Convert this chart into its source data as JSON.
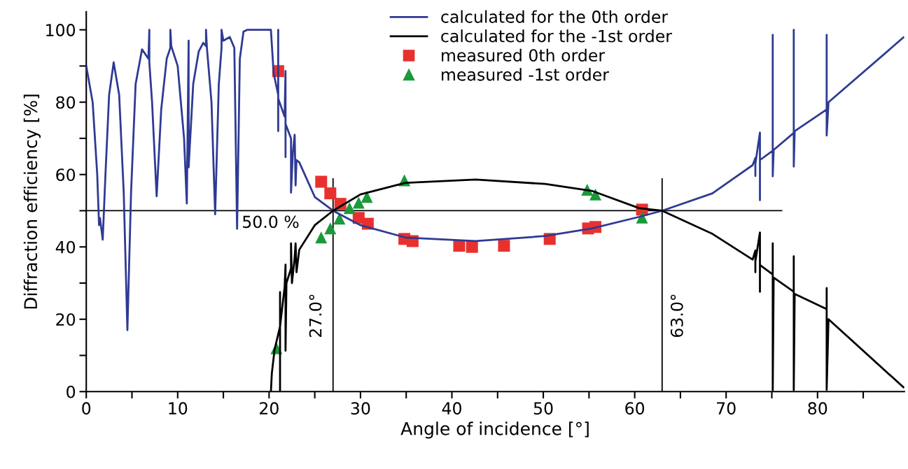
{
  "chart_data": {
    "type": "line",
    "xlabel": "Angle of incidence [°]",
    "ylabel": "Diffraction efficiency [%]",
    "xlim": [
      0,
      89.5
    ],
    "ylim": [
      0,
      105
    ],
    "xticks": [
      0,
      {
        "value": 5,
        "label": null
      },
      10,
      {
        "value": 15,
        "label": null
      },
      20,
      {
        "value": 25,
        "label": null
      },
      30,
      {
        "value": 35,
        "label": null
      },
      40,
      {
        "value": 45,
        "label": null
      },
      50,
      {
        "value": 55,
        "label": null
      },
      60,
      {
        "value": 65,
        "label": null
      },
      70,
      {
        "value": 75,
        "label": null
      },
      80,
      {
        "value": 85,
        "label": null
      }
    ],
    "yticks": [
      0,
      {
        "value": 10,
        "label": null
      },
      20,
      {
        "value": 30,
        "label": null
      },
      40,
      {
        "value": 50,
        "label": null
      },
      60,
      {
        "value": 70,
        "label": null
      },
      80,
      {
        "value": 90,
        "label": null
      },
      100
    ],
    "grid": false,
    "legend": "top",
    "ref_lines": [
      {
        "axis": "y",
        "value": 50,
        "label": "50.0 %",
        "color": "#000000"
      },
      {
        "axis": "x",
        "value": 27,
        "label": "27.0°",
        "color": "#000000"
      },
      {
        "axis": "x",
        "value": 63,
        "label": "63.0°",
        "color": "#000000"
      }
    ],
    "series": [
      {
        "name": "calculated for the 0th order",
        "color": "#2e3a94",
        "marker": "none",
        "line_style": "solid",
        "x": [
          0,
          0.7,
          1.2,
          1.4,
          1.5,
          1.6,
          1.8,
          2.1,
          2.5,
          3.0,
          3.6,
          4.1,
          4.5,
          4.9,
          5.4,
          6.1,
          6.8,
          6.9,
          6.9,
          7.2,
          7.7,
          8.2,
          8.8,
          9.2,
          9.2,
          9.3,
          10.0,
          10.7,
          11.0,
          11.2,
          11.2,
          11.7,
          12.3,
          12.8,
          13.1,
          13.1,
          13.2,
          13.7,
          14.1,
          14.5,
          14.8,
          14.8,
          15.0,
          15.7,
          16.2,
          16.5,
          16.8,
          17.2,
          17.6,
          20.2,
          20.5,
          21.0,
          21.0,
          21.0,
          21.0,
          21.7,
          21.8,
          21.8,
          21.8,
          22.4,
          22.4,
          22.6,
          22.8,
          22.9,
          23.0,
          23.3,
          25.0,
          27.0,
          30,
          34.9,
          42.6,
          50.2,
          55.3,
          60.5,
          63.0,
          68.5,
          72.9,
          73.2,
          73.2,
          73.2,
          73.7,
          73.7,
          73.7,
          75.1,
          75.1,
          75.1,
          75.2,
          77.4,
          77.4,
          77.4,
          77.5,
          81.0,
          81.0,
          81.0,
          81.2,
          89.4
        ],
        "values": [
          90,
          80,
          60,
          46,
          48,
          46,
          42,
          60,
          82,
          91,
          82,
          55,
          17,
          55,
          85,
          94.6,
          92,
          100,
          91,
          80,
          54,
          78,
          92,
          95,
          100,
          95.5,
          90,
          70,
          52,
          97,
          62,
          85,
          94,
          96.4,
          95.5,
          100,
          95,
          80,
          49,
          85,
          95,
          100,
          97,
          98,
          95,
          45,
          92,
          99.5,
          100,
          100,
          88,
          82,
          100,
          72,
          81,
          76,
          88.6,
          64.8,
          74,
          70,
          55,
          66,
          71,
          57,
          64,
          63.4,
          53.8,
          50,
          46,
          42.6,
          41.6,
          43,
          45.1,
          48.3,
          50,
          54.8,
          62.6,
          64.6,
          59.6,
          63,
          71.6,
          52.9,
          64,
          66.6,
          98.6,
          59.5,
          66.8,
          71.5,
          100,
          62.2,
          72,
          78,
          98.6,
          70.8,
          80,
          97.9
        ]
      },
      {
        "name": "calculated for the -1st order",
        "color": "#000000",
        "marker": "none",
        "line_style": "solid",
        "x": [
          20.2,
          20.3,
          20.6,
          21.2,
          21.2,
          21.2,
          21.2,
          21.7,
          21.8,
          21.8,
          21.9,
          22.4,
          22.4,
          22.5,
          22.8,
          22.9,
          23.0,
          23.3,
          25.0,
          27.0,
          30,
          34.9,
          42.6,
          50.2,
          55.3,
          60.5,
          63.0,
          68.5,
          72.9,
          73.2,
          73.2,
          73.2,
          73.7,
          73.7,
          73.7,
          75.1,
          75.1,
          75.1,
          75.2,
          77.4,
          77.4,
          77.4,
          77.5,
          81.0,
          81.0,
          81.0,
          81.2,
          89.4
        ],
        "values": [
          0,
          5,
          11.6,
          18,
          27.5,
          0,
          18,
          28.9,
          35.1,
          11.3,
          30,
          34,
          41,
          30,
          37,
          41,
          33,
          39.2,
          46,
          50,
          54.5,
          57.7,
          58.6,
          57.4,
          55.5,
          50.7,
          50,
          43.6,
          36.5,
          39,
          33,
          36,
          44,
          27.6,
          35,
          32.4,
          41,
          0.4,
          31.5,
          27.6,
          37.4,
          0.4,
          27,
          22.8,
          28.6,
          0.5,
          20,
          1.2
        ]
      },
      {
        "name": "measured 0th order",
        "type": "scatter",
        "color": "#e8312f",
        "marker": "square",
        "x": [
          21.0,
          25.7,
          26.7,
          27.8,
          29.8,
          30.8,
          34.8,
          35.7,
          40.8,
          42.2,
          45.7,
          50.7,
          54.9,
          55.7,
          60.8
        ],
        "values": [
          88.6,
          58.0,
          54.8,
          51.9,
          48.0,
          46.4,
          42.2,
          41.6,
          40.3,
          40.0,
          40.3,
          42.2,
          45.1,
          45.5,
          50.3
        ]
      },
      {
        "name": "measured -1st order",
        "type": "scatter",
        "color": "#1a9a3a",
        "marker": "triangle",
        "x": [
          20.8,
          25.7,
          26.7,
          27.7,
          28.8,
          29.8,
          30.7,
          34.8,
          54.8,
          55.7,
          60.8
        ],
        "values": [
          12.0,
          42.6,
          45.1,
          47.8,
          50.7,
          52.2,
          53.8,
          58.4,
          55.8,
          54.5,
          48.1
        ]
      }
    ]
  }
}
